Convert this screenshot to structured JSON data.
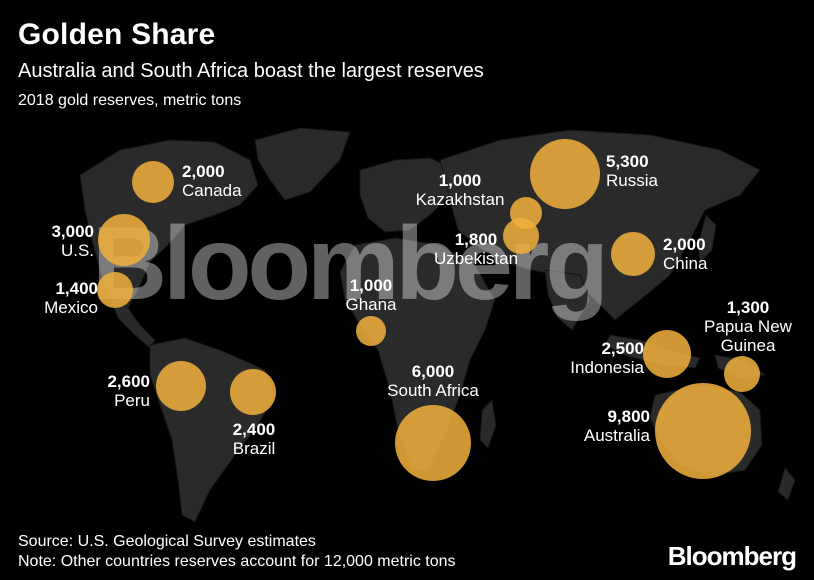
{
  "header": {
    "title": "Golden Share",
    "subtitle": "Australia and South Africa boast the largest reserves",
    "units": "2018 gold reserves, metric tons"
  },
  "colors": {
    "background": "#000000",
    "land": "#2a2a2a",
    "bubble": "#f0b03c",
    "text": "#ffffff"
  },
  "countries": [
    {
      "name": "Canada",
      "value": "2,000"
    },
    {
      "name": "U.S.",
      "value": "3,000"
    },
    {
      "name": "Mexico",
      "value": "1,400"
    },
    {
      "name": "Peru",
      "value": "2,600"
    },
    {
      "name": "Brazil",
      "value": "2,400"
    },
    {
      "name": "Ghana",
      "value": "1,000"
    },
    {
      "name": "South Africa",
      "value": "6,000"
    },
    {
      "name": "Kazakhstan",
      "value": "1,000"
    },
    {
      "name": "Uzbekistan",
      "value": "1,800"
    },
    {
      "name": "Russia",
      "value": "5,300"
    },
    {
      "name": "China",
      "value": "2,000"
    },
    {
      "name": "Indonesia",
      "value": "2,500"
    },
    {
      "name": "Papua New Guinea",
      "value": "1,300"
    },
    {
      "name": "Australia",
      "value": "9,800"
    }
  ],
  "footer": {
    "source": "Source: U.S. Geological Survey estimates",
    "note": "Note: Other countries reserves account for 12,000 metric tons",
    "logo": "Bloomberg"
  },
  "watermark": "Bloomberg"
}
